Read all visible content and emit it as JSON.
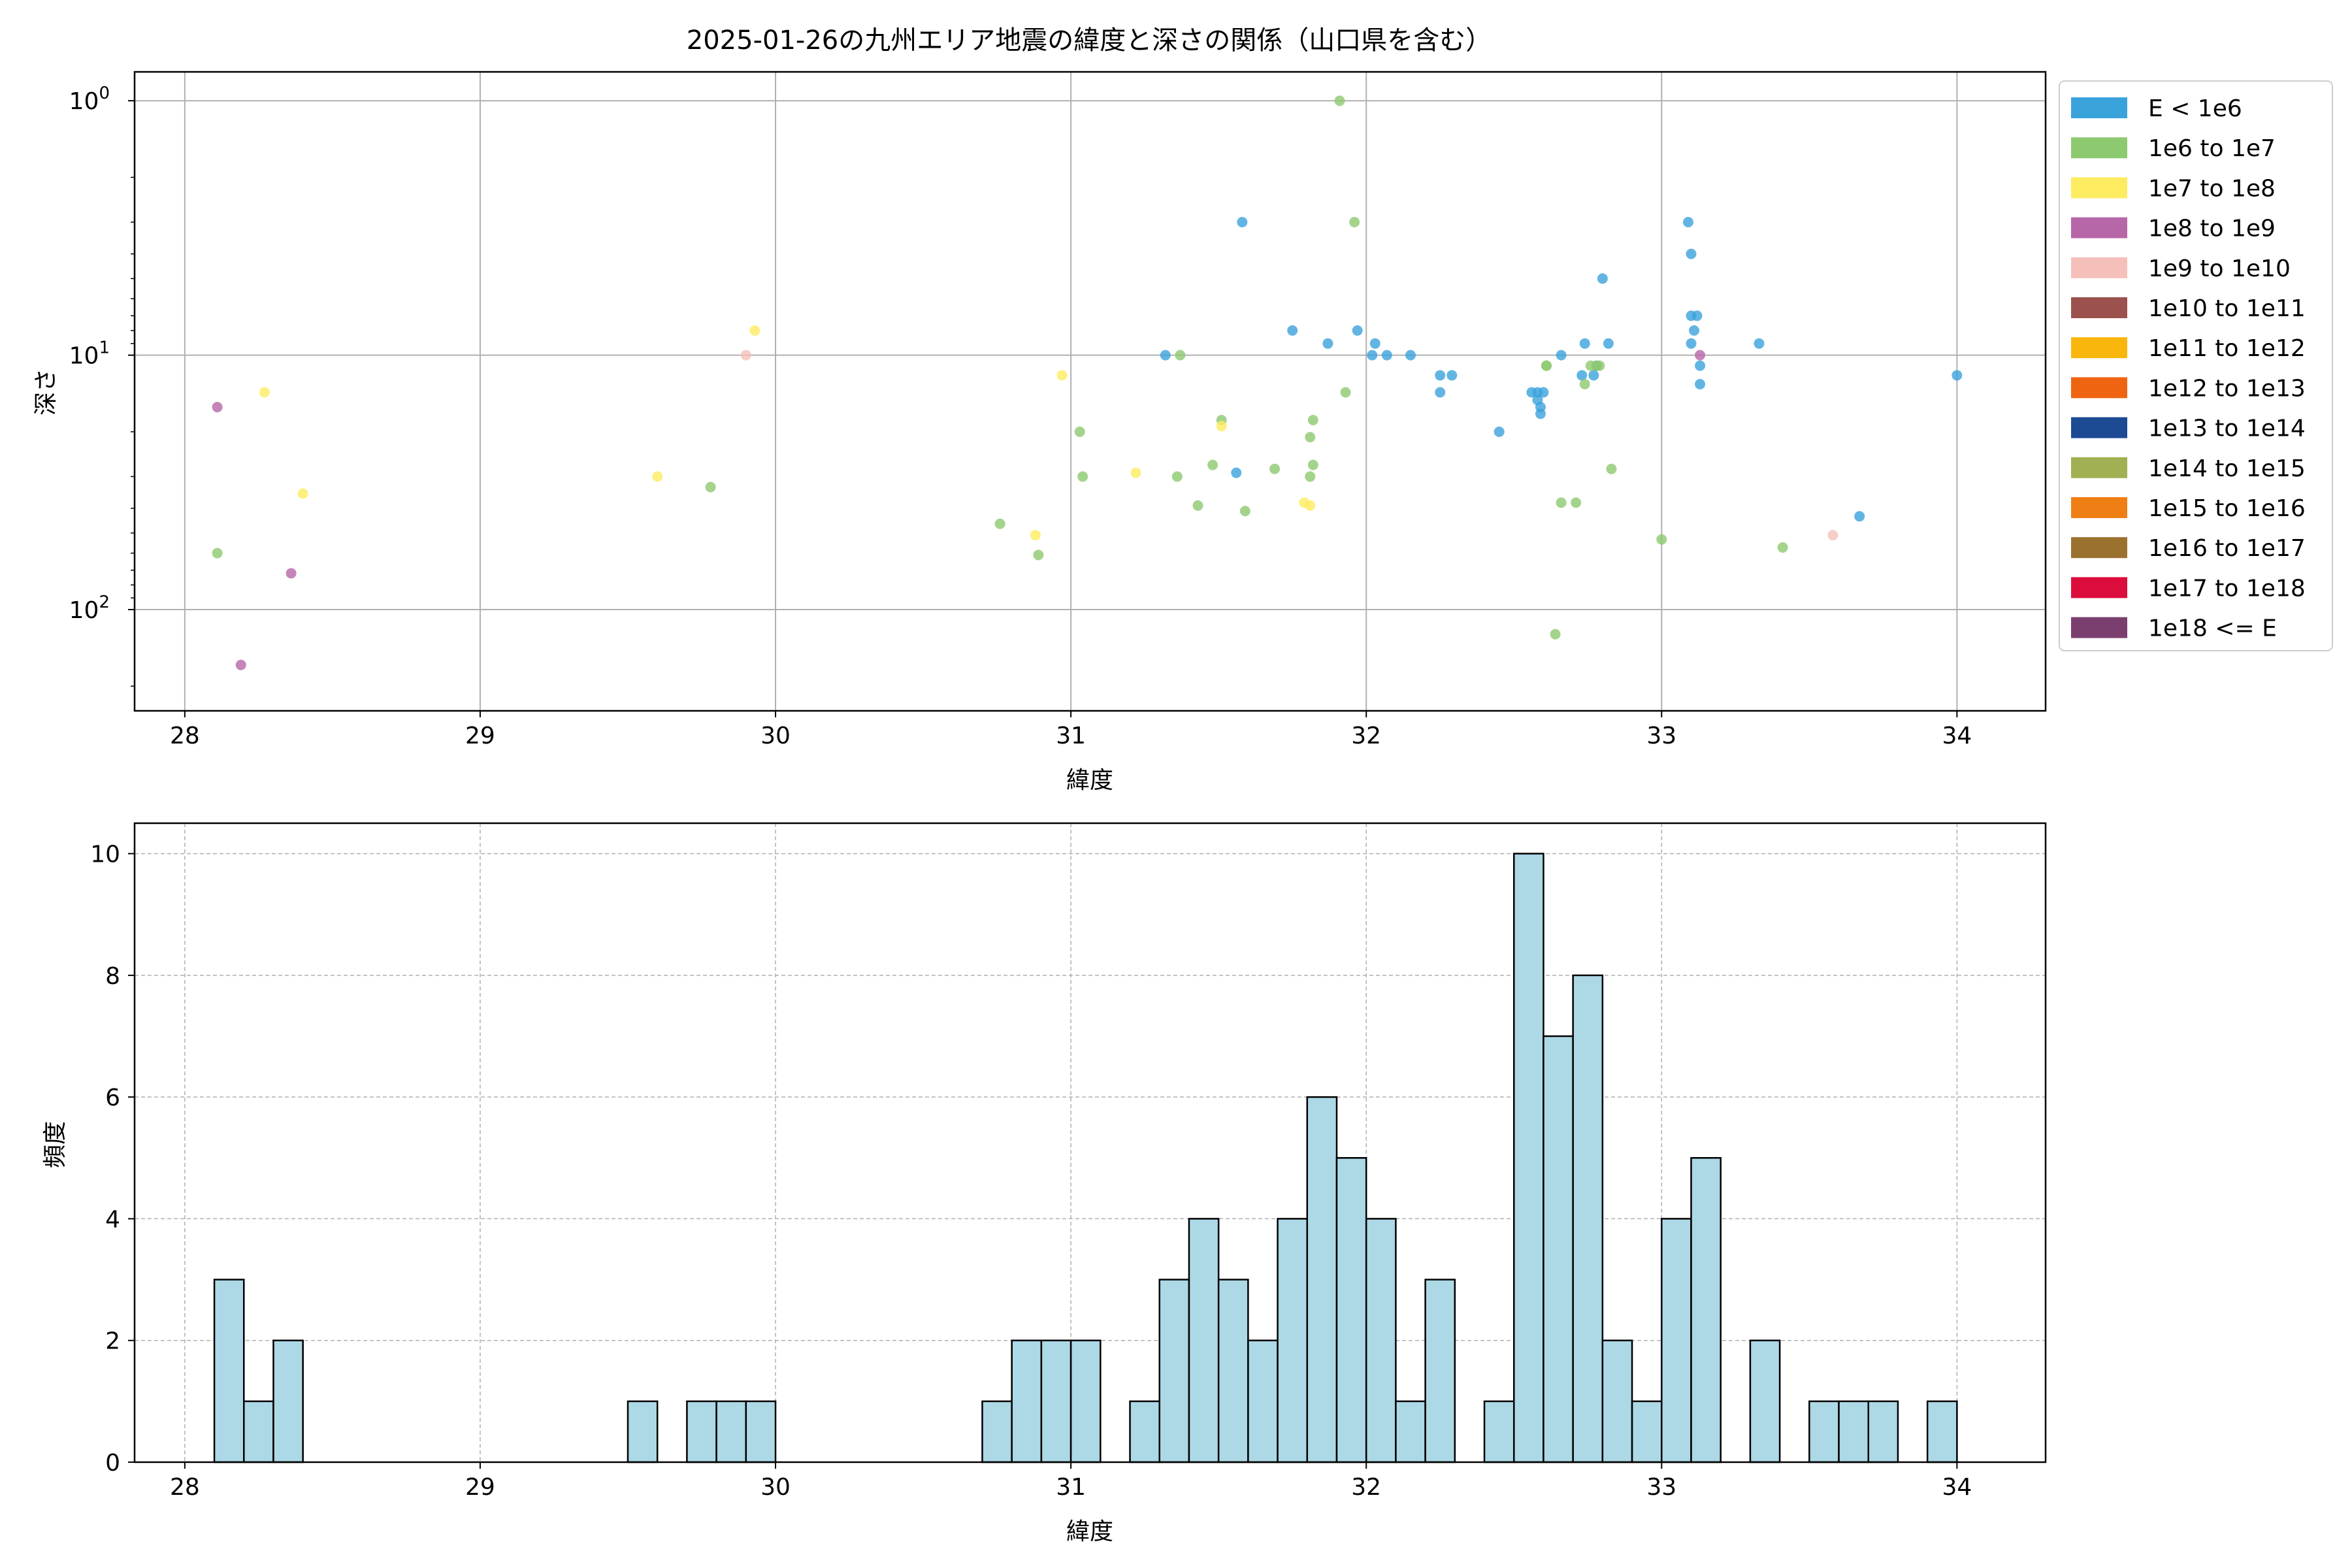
{
  "figure": {
    "title": "2025-01-26の九州エリア地震の緯度と深さの関係（山口県を含む）"
  },
  "chart_data": [
    {
      "type": "scatter",
      "title": "2025-01-26の九州エリア地震の緯度と深さの関係（山口県を含む）",
      "xlabel": "緯度",
      "ylabel": "深さ",
      "xlim": [
        27.83,
        34.3
      ],
      "ylim": [
        250,
        0.77
      ],
      "yscale": "log",
      "yaxis_inverted": true,
      "grid": true,
      "legend_position": "outside-right",
      "xticks": [
        "28",
        "29",
        "30",
        "31",
        "32",
        "33",
        "34"
      ],
      "yticks": [
        {
          "value": 1,
          "base": "10",
          "exp": "0"
        },
        {
          "value": 10,
          "base": "10",
          "exp": "1"
        },
        {
          "value": 100,
          "base": "10",
          "exp": "2"
        }
      ],
      "legend": [
        {
          "label": "E < 1e6",
          "color": "#3ba3dc"
        },
        {
          "label": "1e6 to 1e7",
          "color": "#8dc96f"
        },
        {
          "label": "1e7 to 1e8",
          "color": "#fdec60"
        },
        {
          "label": "1e8 to 1e9",
          "color": "#b767a7"
        },
        {
          "label": "1e9 to 1e10",
          "color": "#f5c0ba"
        },
        {
          "label": "1e10 to 1e11",
          "color": "#9b514d"
        },
        {
          "label": "1e11 to 1e12",
          "color": "#f9b60c"
        },
        {
          "label": "1e12 to 1e13",
          "color": "#ef6410"
        },
        {
          "label": "1e13 to 1e14",
          "color": "#1c4a93"
        },
        {
          "label": "1e14 to 1e15",
          "color": "#a1b052"
        },
        {
          "label": "1e15 to 1e16",
          "color": "#ef7e15"
        },
        {
          "label": "1e16 to 1e17",
          "color": "#9b7130"
        },
        {
          "label": "1e17 to 1e18",
          "color": "#dc0c3c"
        },
        {
          "label": "1e18 <= E",
          "color": "#7a3f6f"
        }
      ],
      "series": [
        {
          "name": "E < 1e6",
          "color": "#3ba3dc",
          "points": [
            [
              31.58,
              3
            ],
            [
              31.32,
              10
            ],
            [
              31.56,
              29
            ],
            [
              31.75,
              8
            ],
            [
              31.87,
              9
            ],
            [
              31.97,
              8
            ],
            [
              32.03,
              9
            ],
            [
              32.02,
              10
            ],
            [
              32.07,
              10
            ],
            [
              32.15,
              10
            ],
            [
              32.25,
              12
            ],
            [
              32.25,
              14
            ],
            [
              32.29,
              12
            ],
            [
              32.45,
              20
            ],
            [
              32.56,
              14
            ],
            [
              32.58,
              14
            ],
            [
              32.58,
              15
            ],
            [
              32.59,
              16
            ],
            [
              32.59,
              17
            ],
            [
              32.6,
              14
            ],
            [
              32.66,
              10
            ],
            [
              32.73,
              12
            ],
            [
              32.74,
              9
            ],
            [
              32.77,
              12
            ],
            [
              32.78,
              11
            ],
            [
              32.8,
              5
            ],
            [
              32.82,
              9
            ],
            [
              33.09,
              3
            ],
            [
              33.1,
              4
            ],
            [
              33.1,
              7
            ],
            [
              33.12,
              7
            ],
            [
              33.11,
              8
            ],
            [
              33.1,
              9
            ],
            [
              33.13,
              11
            ],
            [
              33.13,
              13
            ],
            [
              33.33,
              9
            ],
            [
              33.67,
              43
            ],
            [
              34.0,
              12
            ]
          ]
        },
        {
          "name": "1e6 to 1e7",
          "color": "#8dc96f",
          "points": [
            [
              28.11,
              60
            ],
            [
              29.78,
              33
            ],
            [
              30.76,
              46
            ],
            [
              30.89,
              61
            ],
            [
              31.03,
              20
            ],
            [
              31.04,
              30
            ],
            [
              31.37,
              10
            ],
            [
              31.36,
              30
            ],
            [
              31.43,
              39
            ],
            [
              31.48,
              27
            ],
            [
              31.51,
              18
            ],
            [
              31.59,
              41
            ],
            [
              31.69,
              28
            ],
            [
              31.81,
              30
            ],
            [
              31.81,
              21
            ],
            [
              31.82,
              18
            ],
            [
              31.82,
              27
            ],
            [
              31.91,
              1
            ],
            [
              31.93,
              14
            ],
            [
              31.96,
              3
            ],
            [
              32.61,
              11
            ],
            [
              32.61,
              11
            ],
            [
              32.66,
              38
            ],
            [
              32.64,
              125
            ],
            [
              32.71,
              38
            ],
            [
              32.74,
              13
            ],
            [
              32.76,
              11
            ],
            [
              32.78,
              11
            ],
            [
              32.79,
              11
            ],
            [
              32.83,
              28
            ],
            [
              33.0,
              53
            ],
            [
              33.41,
              57
            ]
          ]
        },
        {
          "name": "1e7 to 1e8",
          "color": "#fdec60",
          "points": [
            [
              28.27,
              14
            ],
            [
              28.4,
              35
            ],
            [
              29.6,
              30
            ],
            [
              29.93,
              8
            ],
            [
              30.88,
              51
            ],
            [
              30.97,
              12
            ],
            [
              31.22,
              29
            ],
            [
              31.51,
              19
            ],
            [
              31.79,
              38
            ],
            [
              31.81,
              39
            ]
          ]
        },
        {
          "name": "1e8 to 1e9",
          "color": "#b767a7",
          "points": [
            [
              28.11,
              16
            ],
            [
              28.36,
              72
            ],
            [
              28.19,
              165
            ],
            [
              33.13,
              10
            ]
          ]
        },
        {
          "name": "1e9 to 1e10",
          "color": "#f5c0ba",
          "points": [
            [
              29.9,
              10
            ],
            [
              33.58,
              51
            ]
          ]
        }
      ]
    },
    {
      "type": "bar",
      "title": "",
      "xlabel": "緯度",
      "ylabel": "頻度",
      "xlim": [
        27.83,
        34.3
      ],
      "ylim": [
        0,
        10.5
      ],
      "grid": true,
      "bar_color": "#add8e6",
      "edge_color": "#000000",
      "xticks": [
        "28",
        "29",
        "30",
        "31",
        "32",
        "33",
        "34"
      ],
      "yticks": [
        "0",
        "2",
        "4",
        "6",
        "8",
        "10"
      ],
      "bin_start": 28.0,
      "bin_width": 0.1,
      "values": [
        0,
        3,
        1,
        2,
        0,
        0,
        0,
        0,
        0,
        0,
        0,
        0,
        0,
        0,
        0,
        1,
        0,
        1,
        1,
        1,
        0,
        0,
        0,
        0,
        0,
        0,
        0,
        1,
        2,
        2,
        2,
        0,
        1,
        3,
        4,
        3,
        2,
        4,
        6,
        5,
        4,
        1,
        3,
        0,
        1,
        10,
        7,
        8,
        2,
        1,
        4,
        5,
        0,
        2,
        0,
        1,
        1,
        1,
        0,
        1
      ]
    }
  ]
}
